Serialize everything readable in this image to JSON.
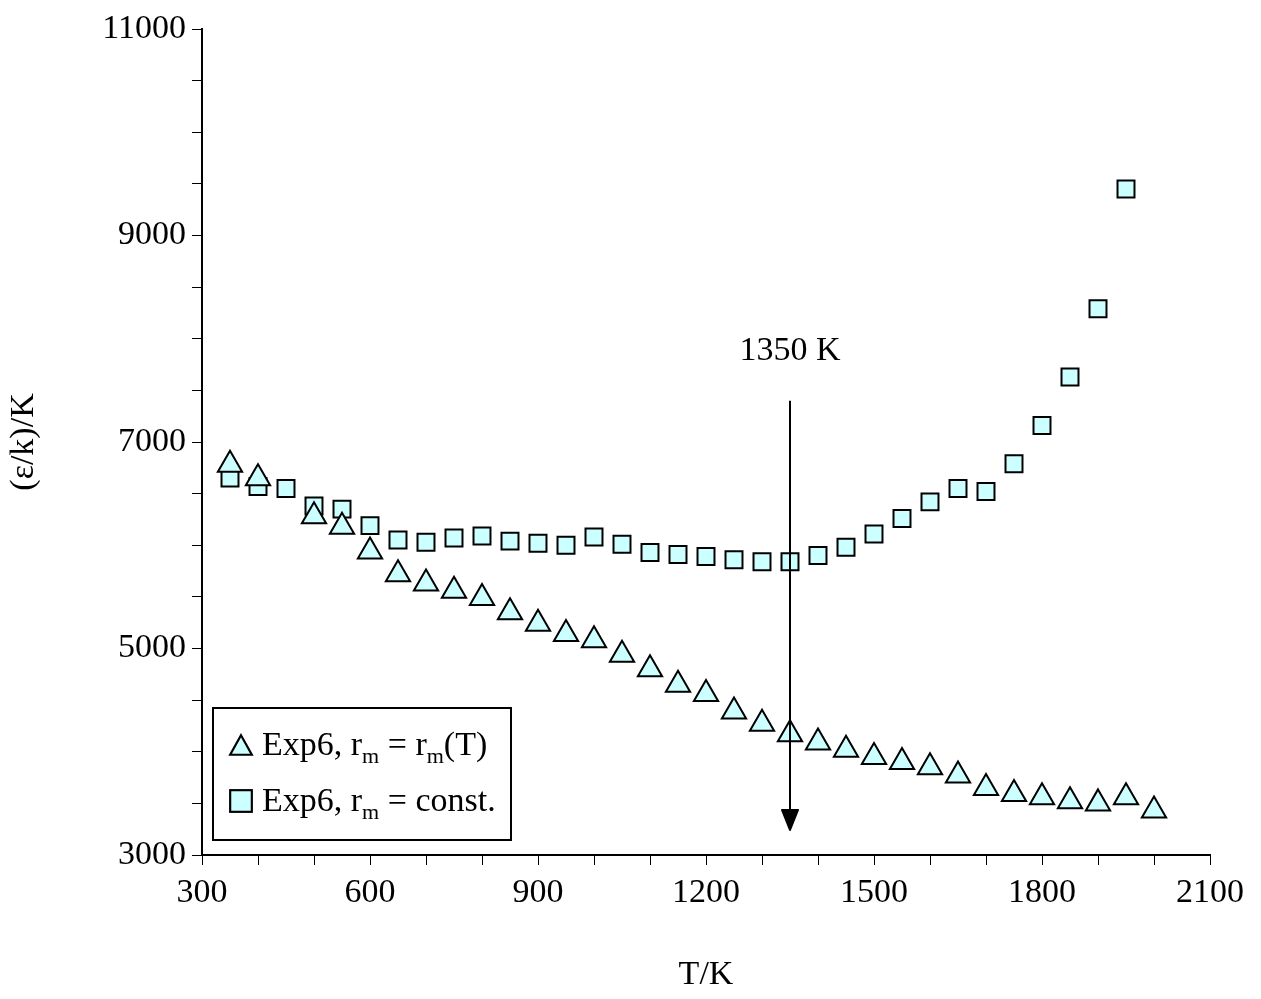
{
  "chart_data": {
    "type": "scatter",
    "xlabel": "T/K",
    "ylabel": "(ε/k)/K",
    "x": [
      350,
      400,
      450,
      500,
      550,
      600,
      650,
      700,
      750,
      800,
      850,
      900,
      950,
      1000,
      1050,
      1100,
      1150,
      1200,
      1250,
      1300,
      1350,
      1400,
      1450,
      1500,
      1550,
      1600,
      1650,
      1700,
      1750,
      1800,
      1850,
      1900,
      1950,
      2000
    ],
    "series": [
      {
        "name": "Exp6, r$_{m}$ = r$_{m}$(T)",
        "color": "#ccffff",
        "marker": "triangle",
        "values": [
          6780,
          6650,
          null,
          6280,
          6180,
          5940,
          5720,
          5630,
          5560,
          5490,
          5350,
          5240,
          5140,
          5080,
          4940,
          4800,
          4650,
          4560,
          4390,
          4270,
          4170,
          4090,
          4020,
          3950,
          3900,
          3850,
          3770,
          3650,
          3590,
          3560,
          3520,
          3500,
          3560,
          3430
        ]
      },
      {
        "name": "Exp6, r$_{m}$ = const.",
        "color": "#ccffff",
        "marker": "square",
        "values": [
          6650,
          6570,
          6550,
          6380,
          6350,
          6190,
          6050,
          6030,
          6070,
          6090,
          6040,
          6020,
          6000,
          6080,
          6010,
          5930,
          5910,
          5890,
          5860,
          5840,
          5840,
          5900,
          5980,
          6110,
          6260,
          6420,
          6550,
          6520,
          6790,
          7160,
          7630,
          8290,
          9450,
          null
        ]
      }
    ],
    "xlim": [
      300,
      2100
    ],
    "xticks": [
      300,
      {
        "value": 400,
        "label": null
      },
      {
        "value": 500,
        "label": null
      },
      600,
      {
        "value": 700,
        "label": null
      },
      {
        "value": 800,
        "label": null
      },
      900,
      {
        "value": 1000,
        "label": null
      },
      {
        "value": 1100,
        "label": null
      },
      1200,
      {
        "value": 1300,
        "label": null
      },
      {
        "value": 1400,
        "label": null
      },
      1500,
      {
        "value": 1600,
        "label": null
      },
      {
        "value": 1700,
        "label": null
      },
      1800,
      {
        "value": 1900,
        "label": null
      },
      {
        "value": 2000,
        "label": null
      },
      2100
    ],
    "ylim": [
      3000,
      11000
    ],
    "yticks": [
      3000,
      {
        "value": 3500,
        "label": null
      },
      {
        "value": 4000,
        "label": null
      },
      {
        "value": 4500,
        "label": null
      },
      5000,
      {
        "value": 5500,
        "label": null
      },
      {
        "value": 6000,
        "label": null
      },
      {
        "value": 6500,
        "label": null
      },
      7000,
      {
        "value": 7500,
        "label": null
      },
      {
        "value": 8000,
        "label": null
      },
      {
        "value": 8500,
        "label": null
      },
      9000,
      {
        "value": 9500,
        "label": null
      },
      {
        "value": 10000,
        "label": null
      },
      {
        "value": 10500,
        "label": null
      },
      11000
    ],
    "ref_lines": [
      {
        "axis": "x",
        "value": 1350,
        "label": "1350 K"
      }
    ],
    "grid": false,
    "legend": "bottom left"
  }
}
